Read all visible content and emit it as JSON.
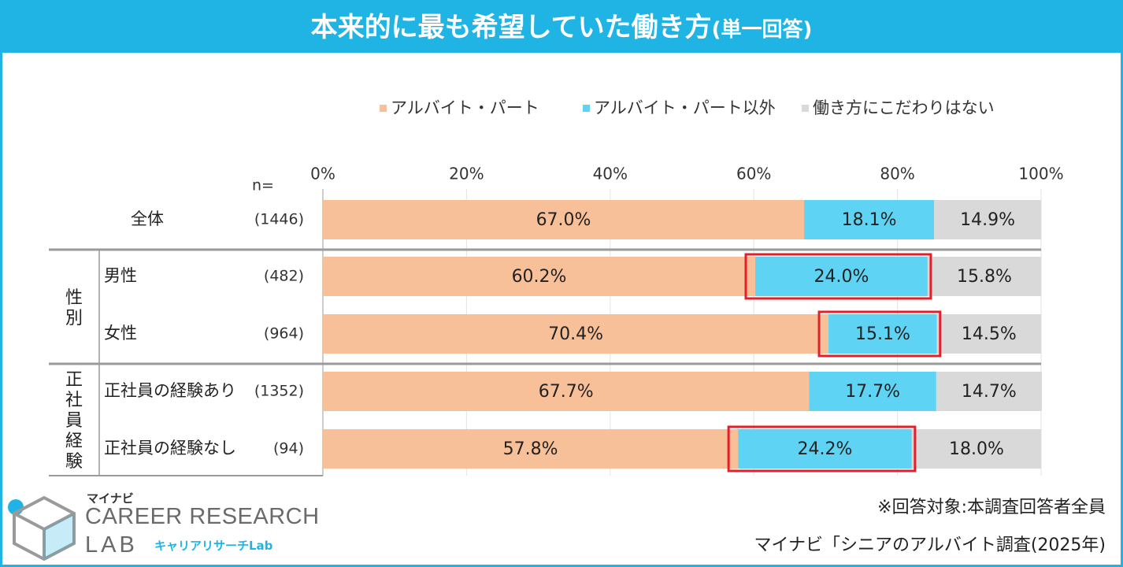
{
  "title": "本来的に最も希望していた働き方",
  "title_sub": "(単一回答)",
  "legend": [
    {
      "label": "アルバイト・パート",
      "color": "#f8c098"
    },
    {
      "label": "アルバイト・パート以外",
      "color": "#5ed3f3"
    },
    {
      "label": "働き方にこだわりはない",
      "color": "#d9d9d9"
    }
  ],
  "n_header": "n=",
  "groups": [
    {
      "label": "性別"
    },
    {
      "label": "正社員経験"
    }
  ],
  "chart_data": {
    "type": "bar",
    "orientation": "horizontal",
    "stacked": true,
    "title": "本来的に最も希望していた働き方(単一回答)",
    "xlim": [
      0,
      100
    ],
    "xticks": [
      "0%",
      "20%",
      "40%",
      "60%",
      "80%",
      "100%"
    ],
    "categories": [
      "全体",
      "男性",
      "女性",
      "正社員の経験あり",
      "正社員の経験なし"
    ],
    "n": [
      "(1446)",
      "(482)",
      "(964)",
      "(1352)",
      "(94)"
    ],
    "series": [
      {
        "name": "アルバイト・パート",
        "values": [
          67.0,
          60.2,
          70.4,
          67.7,
          57.8
        ],
        "labels": [
          "67.0%",
          "60.2%",
          "70.4%",
          "67.7%",
          "57.8%"
        ]
      },
      {
        "name": "アルバイト・パート以外",
        "values": [
          18.1,
          24.0,
          15.1,
          17.7,
          24.2
        ],
        "labels": [
          "18.1%",
          "24.0%",
          "15.1%",
          "17.7%",
          "24.2%"
        ]
      },
      {
        "name": "働き方にこだわりはない",
        "values": [
          14.9,
          15.8,
          14.5,
          14.7,
          18.0
        ],
        "labels": [
          "14.9%",
          "15.8%",
          "14.5%",
          "14.7%",
          "18.0%"
        ]
      }
    ],
    "highlighted": [
      [
        1,
        1
      ],
      [
        2,
        1
      ],
      [
        4,
        1
      ]
    ],
    "highlight_color": "#e0202a"
  },
  "logo": {
    "small": "マイナビ",
    "line1": "CAREER RESEARCH",
    "line2": "LAB",
    "kana": "キャリアリサーチLab"
  },
  "notes": {
    "target": "※回答対象:本調査回答者全員",
    "source": "マイナビ「シニアのアルバイト調査(2025年)"
  }
}
